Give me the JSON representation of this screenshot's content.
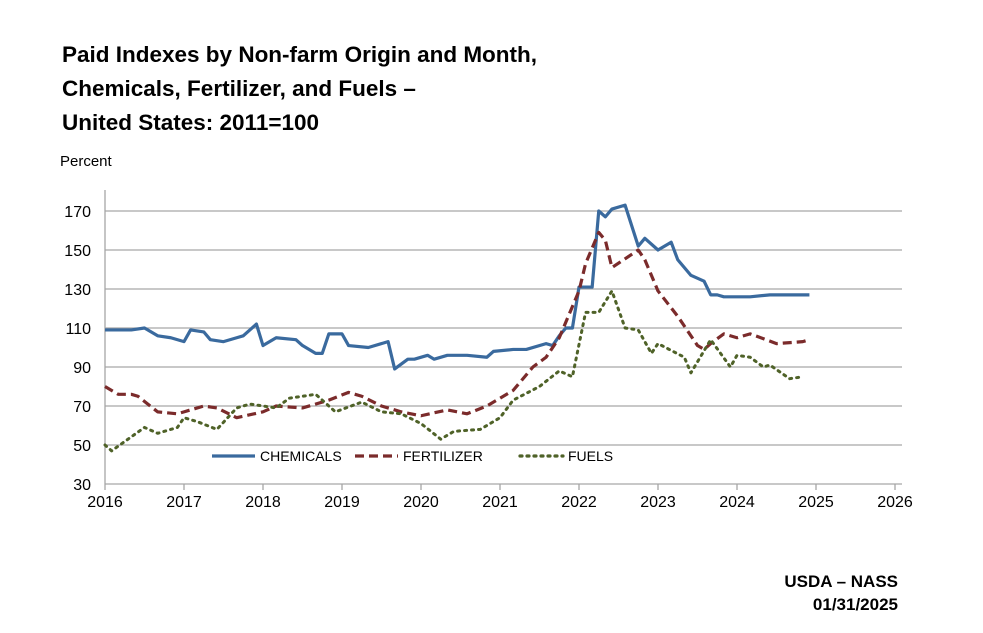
{
  "chart_data": {
    "type": "line",
    "title": [
      "Paid Indexes by Non-farm Origin and Month,",
      "Chemicals, Fertilizer, and Fuels –",
      "United States: 2011=100"
    ],
    "ylabel": "Percent",
    "xlabel": "",
    "xlim": [
      2016,
      2026
    ],
    "ylim": [
      30,
      170
    ],
    "xticks": [
      "2016",
      "2017",
      "2018",
      "2019",
      "2020",
      "2021",
      "2022",
      "2023",
      "2024",
      "2025",
      "2026"
    ],
    "yticks": [
      "30",
      "50",
      "70",
      "90",
      "110",
      "130",
      "150",
      "170"
    ],
    "grid": "horizontal",
    "legend_position": "inside-bottom-left",
    "series": [
      {
        "name": "CHEMICALS",
        "color": "#3a6a9e",
        "style": "solid",
        "points": [
          [
            "2016-01",
            109
          ],
          [
            "2016-05",
            109
          ],
          [
            "2016-07",
            110
          ],
          [
            "2016-09",
            106
          ],
          [
            "2016-11",
            105
          ],
          [
            "2017-01",
            103
          ],
          [
            "2017-02",
            109
          ],
          [
            "2017-04",
            108
          ],
          [
            "2017-05",
            104
          ],
          [
            "2017-07",
            103
          ],
          [
            "2017-09",
            105
          ],
          [
            "2017-10",
            106
          ],
          [
            "2017-12",
            112
          ],
          [
            "2018-01",
            101
          ],
          [
            "2018-03",
            105
          ],
          [
            "2018-06",
            104
          ],
          [
            "2018-07",
            101
          ],
          [
            "2018-09",
            97
          ],
          [
            "2018-10",
            97
          ],
          [
            "2018-11",
            107
          ],
          [
            "2019-01",
            107
          ],
          [
            "2019-02",
            101
          ],
          [
            "2019-05",
            100
          ],
          [
            "2019-08",
            103
          ],
          [
            "2019-09",
            89
          ],
          [
            "2019-11",
            94
          ],
          [
            "2019-12",
            94
          ],
          [
            "2020-02",
            96
          ],
          [
            "2020-03",
            94
          ],
          [
            "2020-05",
            96
          ],
          [
            "2020-08",
            96
          ],
          [
            "2020-11",
            95
          ],
          [
            "2020-12",
            98
          ],
          [
            "2021-03",
            99
          ],
          [
            "2021-05",
            99
          ],
          [
            "2021-08",
            102
          ],
          [
            "2021-09",
            101
          ],
          [
            "2021-10",
            106
          ],
          [
            "2021-11",
            110
          ],
          [
            "2021-12",
            110
          ],
          [
            "2022-01",
            131
          ],
          [
            "2022-03",
            131
          ],
          [
            "2022-04",
            170
          ],
          [
            "2022-05",
            167
          ],
          [
            "2022-06",
            171
          ],
          [
            "2022-08",
            173
          ],
          [
            "2022-10",
            152
          ],
          [
            "2022-11",
            156
          ],
          [
            "2023-01",
            150
          ],
          [
            "2023-03",
            154
          ],
          [
            "2023-04",
            145
          ],
          [
            "2023-06",
            137
          ],
          [
            "2023-08",
            134
          ],
          [
            "2023-09",
            127
          ],
          [
            "2023-10",
            127
          ],
          [
            "2023-11",
            126
          ],
          [
            "2024-03",
            126
          ],
          [
            "2024-06",
            127
          ],
          [
            "2024-12",
            127
          ]
        ]
      },
      {
        "name": "FERTILIZER",
        "color": "#7b2b2b",
        "style": "dashed",
        "points": [
          [
            "2016-01",
            80
          ],
          [
            "2016-03",
            76
          ],
          [
            "2016-05",
            76
          ],
          [
            "2016-06",
            75
          ],
          [
            "2016-09",
            67
          ],
          [
            "2016-12",
            66
          ],
          [
            "2017-01",
            67
          ],
          [
            "2017-04",
            70
          ],
          [
            "2017-06",
            69
          ],
          [
            "2017-09",
            64
          ],
          [
            "2018-01",
            67
          ],
          [
            "2018-03",
            70
          ],
          [
            "2018-07",
            69
          ],
          [
            "2018-11",
            73
          ],
          [
            "2019-02",
            77
          ],
          [
            "2019-04",
            75
          ],
          [
            "2019-07",
            70
          ],
          [
            "2019-10",
            67
          ],
          [
            "2020-01",
            65
          ],
          [
            "2020-05",
            68
          ],
          [
            "2020-08",
            66
          ],
          [
            "2020-11",
            70
          ],
          [
            "2021-03",
            78
          ],
          [
            "2021-06",
            90
          ],
          [
            "2021-08",
            95
          ],
          [
            "2021-10",
            105
          ],
          [
            "2022-01",
            129
          ],
          [
            "2022-02",
            143
          ],
          [
            "2022-04",
            159
          ],
          [
            "2022-05",
            155
          ],
          [
            "2022-06",
            141
          ],
          [
            "2022-10",
            150
          ],
          [
            "2022-11",
            145
          ],
          [
            "2023-01",
            129
          ],
          [
            "2023-04",
            116
          ],
          [
            "2023-07",
            101
          ],
          [
            "2023-08",
            99
          ],
          [
            "2023-09",
            102
          ],
          [
            "2023-11",
            107
          ],
          [
            "2024-01",
            105
          ],
          [
            "2024-03",
            107
          ],
          [
            "2024-07",
            102
          ],
          [
            "2024-11",
            103
          ],
          [
            "2024-12",
            104
          ]
        ]
      },
      {
        "name": "FUELS",
        "color": "#4f6228",
        "style": "dotted",
        "points": [
          [
            "2016-01",
            50
          ],
          [
            "2016-02",
            47
          ],
          [
            "2016-07",
            59
          ],
          [
            "2016-09",
            56
          ],
          [
            "2016-12",
            59
          ],
          [
            "2017-01",
            64
          ],
          [
            "2017-03",
            62
          ],
          [
            "2017-06",
            58
          ],
          [
            "2017-09",
            69
          ],
          [
            "2017-11",
            71
          ],
          [
            "2018-03",
            69
          ],
          [
            "2018-05",
            74
          ],
          [
            "2018-09",
            76
          ],
          [
            "2018-12",
            67
          ],
          [
            "2019-04",
            72
          ],
          [
            "2019-07",
            67
          ],
          [
            "2019-10",
            66
          ],
          [
            "2020-01",
            61
          ],
          [
            "2020-04",
            53
          ],
          [
            "2020-06",
            57
          ],
          [
            "2020-10",
            58
          ],
          [
            "2021-01",
            64
          ],
          [
            "2021-03",
            73
          ],
          [
            "2021-07",
            80
          ],
          [
            "2021-10",
            88
          ],
          [
            "2021-12",
            85
          ],
          [
            "2022-02",
            118
          ],
          [
            "2022-04",
            118
          ],
          [
            "2022-06",
            129
          ],
          [
            "2022-08",
            110
          ],
          [
            "2022-10",
            109
          ],
          [
            "2022-12",
            97
          ],
          [
            "2023-01",
            102
          ],
          [
            "2023-05",
            95
          ],
          [
            "2023-06",
            87
          ],
          [
            "2023-09",
            104
          ],
          [
            "2023-12",
            90
          ],
          [
            "2024-01",
            96
          ],
          [
            "2024-03",
            95
          ],
          [
            "2024-05",
            90
          ],
          [
            "2024-06",
            91
          ],
          [
            "2024-09",
            84
          ],
          [
            "2024-11",
            85
          ]
        ]
      }
    ]
  },
  "footer": {
    "source": "USDA – NASS",
    "date": "01/31/2025"
  }
}
